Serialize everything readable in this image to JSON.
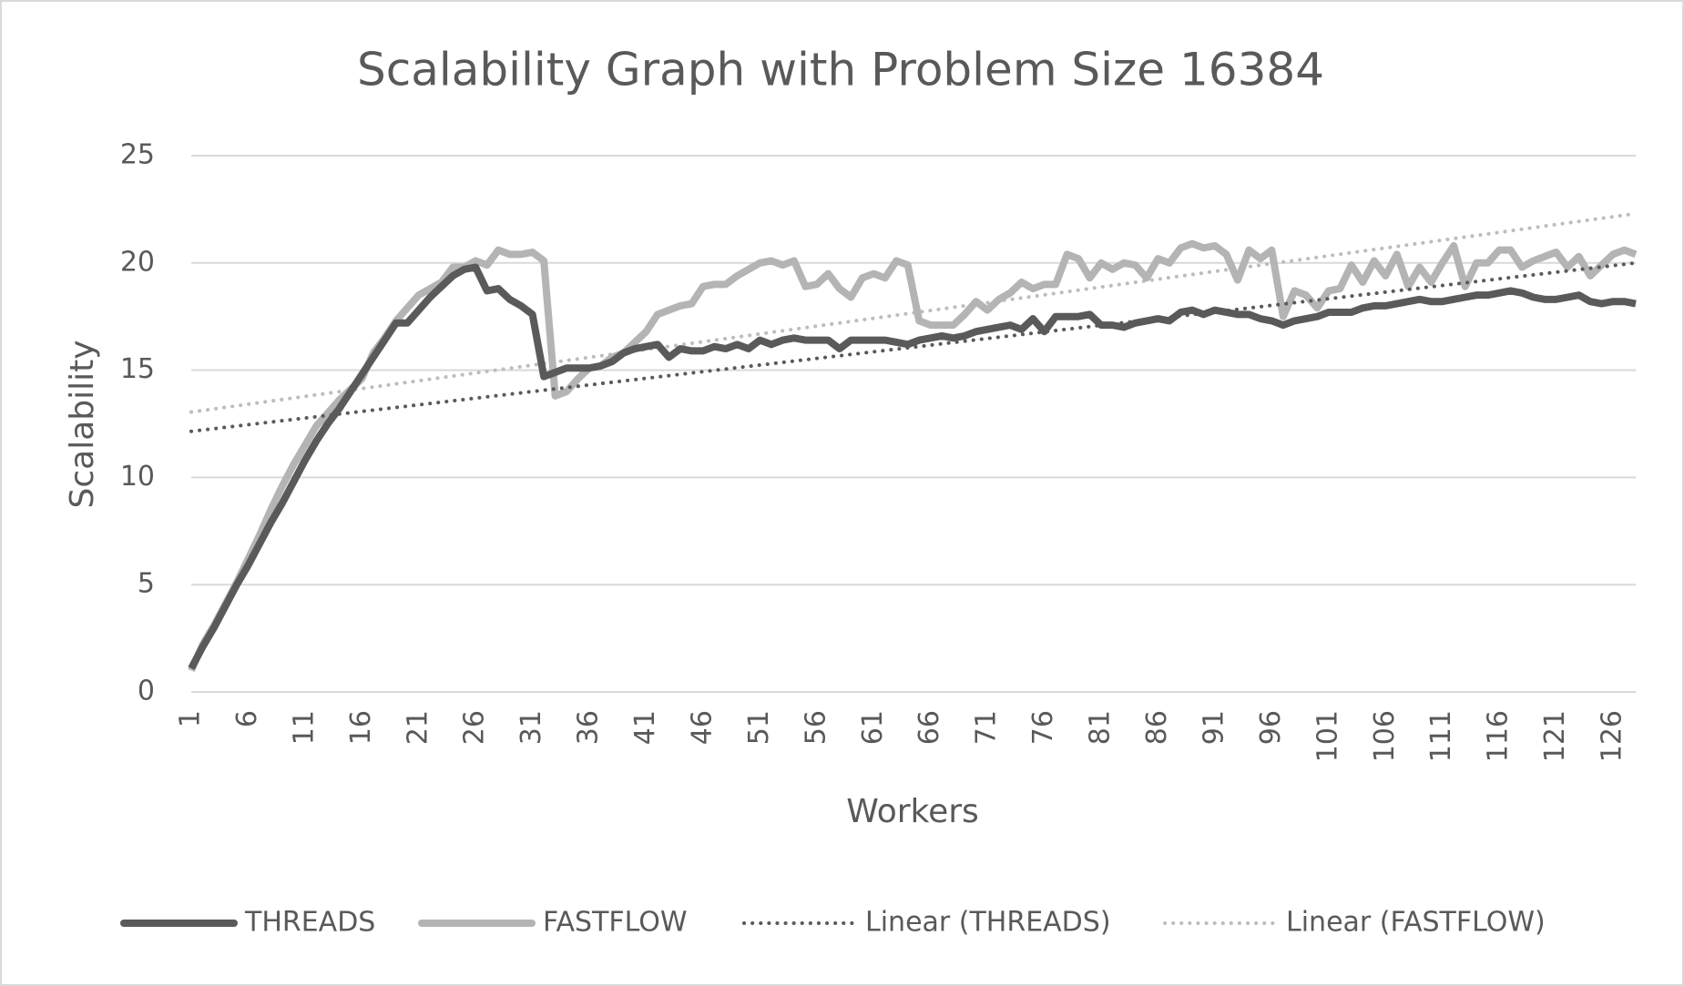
{
  "chart_data": {
    "type": "line",
    "title": "Scalability  Graph with Problem Size 16384",
    "x_label": "Workers",
    "y_label": "Scalability",
    "categories": [
      "1",
      null,
      null,
      null,
      null,
      "6",
      null,
      null,
      null,
      null,
      "11",
      null,
      null,
      null,
      null,
      "16",
      null,
      null,
      null,
      null,
      "21",
      null,
      null,
      null,
      null,
      "26",
      null,
      null,
      null,
      null,
      "31",
      null,
      null,
      null,
      null,
      "36",
      null,
      null,
      null,
      null,
      "41",
      null,
      null,
      null,
      null,
      "46",
      null,
      null,
      null,
      null,
      "51",
      null,
      null,
      null,
      null,
      "56",
      null,
      null,
      null,
      null,
      "61",
      null,
      null,
      null,
      null,
      "66",
      null,
      null,
      null,
      null,
      "71",
      null,
      null,
      null,
      null,
      "76",
      null,
      null,
      null,
      null,
      "81",
      null,
      null,
      null,
      null,
      "86",
      null,
      null,
      null,
      null,
      "91",
      null,
      null,
      null,
      null,
      "96",
      null,
      null,
      null,
      null,
      "101",
      null,
      null,
      null,
      null,
      "106",
      null,
      null,
      null,
      null,
      "111",
      null,
      null,
      null,
      null,
      "116",
      null,
      null,
      null,
      null,
      "121",
      null,
      null,
      null,
      null,
      "126",
      null,
      null
    ],
    "series": [
      {
        "name": "THREADS",
        "color": "#5a5a5a",
        "values": [
          1.1,
          2.1,
          3.0,
          4.0,
          5.0,
          5.9,
          6.9,
          7.9,
          8.8,
          9.8,
          10.8,
          11.7,
          12.5,
          13.2,
          14.0,
          14.8,
          15.6,
          16.4,
          17.2,
          17.2,
          17.8,
          18.4,
          18.9,
          19.4,
          19.7,
          19.8,
          18.7,
          18.8,
          18.3,
          18.0,
          17.6,
          14.7,
          14.9,
          15.1,
          15.1,
          15.1,
          15.2,
          15.4,
          15.8,
          16.0,
          16.1,
          16.2,
          15.6,
          16.0,
          15.9,
          15.9,
          16.1,
          16.0,
          16.2,
          16.0,
          16.4,
          16.2,
          16.4,
          16.5,
          16.4,
          16.4,
          16.4,
          16.0,
          16.4,
          16.4,
          16.4,
          16.4,
          16.3,
          16.2,
          16.4,
          16.5,
          16.6,
          16.5,
          16.6,
          16.8,
          16.9,
          17.0,
          17.1,
          16.9,
          17.4,
          16.8,
          17.5,
          17.5,
          17.5,
          17.6,
          17.1,
          17.1,
          17.0,
          17.2,
          17.3,
          17.4,
          17.3,
          17.7,
          17.8,
          17.6,
          17.8,
          17.7,
          17.6,
          17.6,
          17.4,
          17.3,
          17.1,
          17.3,
          17.4,
          17.5,
          17.7,
          17.7,
          17.7,
          17.9,
          18.0,
          18.0,
          18.1,
          18.2,
          18.3,
          18.2,
          18.2,
          18.3,
          18.4,
          18.5,
          18.5,
          18.6,
          18.7,
          18.6,
          18.4,
          18.3,
          18.3,
          18.4,
          18.5,
          18.2,
          18.1,
          18.2,
          18.2,
          18.1
        ],
        "trendline": {
          "name": "Linear (THREADS)",
          "color": "#5a5a5a",
          "values": [
            12.15,
            20.0
          ]
        }
      },
      {
        "name": "FASTFLOW",
        "color": "#b4b4b4",
        "values": [
          1.0,
          2.2,
          3.1,
          4.1,
          5.1,
          6.2,
          7.3,
          8.5,
          9.6,
          10.6,
          11.5,
          12.4,
          13.0,
          13.6,
          14.1,
          14.6,
          15.8,
          16.5,
          17.3,
          17.9,
          18.5,
          18.8,
          19.1,
          19.8,
          19.8,
          20.1,
          19.9,
          20.6,
          20.4,
          20.4,
          20.5,
          20.1,
          13.8,
          14.0,
          14.6,
          15.1,
          15.2,
          15.6,
          15.8,
          16.3,
          16.8,
          17.6,
          17.8,
          18.0,
          18.1,
          18.9,
          19.0,
          19.0,
          19.4,
          19.7,
          20.0,
          20.1,
          19.9,
          20.1,
          18.9,
          19.0,
          19.5,
          18.8,
          18.4,
          19.3,
          19.5,
          19.3,
          20.1,
          19.9,
          17.3,
          17.1,
          17.1,
          17.1,
          17.6,
          18.2,
          17.8,
          18.3,
          18.6,
          19.1,
          18.8,
          19.0,
          19.0,
          20.4,
          20.2,
          19.3,
          20.0,
          19.7,
          20.0,
          19.9,
          19.3,
          20.2,
          20.0,
          20.7,
          20.9,
          20.7,
          20.8,
          20.4,
          19.2,
          20.6,
          20.2,
          20.6,
          17.5,
          18.7,
          18.5,
          17.9,
          18.7,
          18.8,
          19.9,
          19.1,
          20.1,
          19.4,
          20.4,
          18.9,
          19.8,
          19.1,
          20.0,
          20.8,
          18.9,
          20.0,
          20.0,
          20.6,
          20.6,
          19.8,
          20.1,
          20.3,
          20.5,
          19.8,
          20.3,
          19.4,
          19.9,
          20.4,
          20.6,
          20.4
        ],
        "trendline": {
          "name": "Linear (FASTFLOW)",
          "color": "#bdbdbd",
          "values": [
            13.05,
            22.3
          ]
        }
      }
    ],
    "ylim": [
      0,
      25
    ],
    "yticks": [
      0,
      5,
      10,
      15,
      20,
      25
    ],
    "grid": true,
    "legend": "bottom"
  }
}
